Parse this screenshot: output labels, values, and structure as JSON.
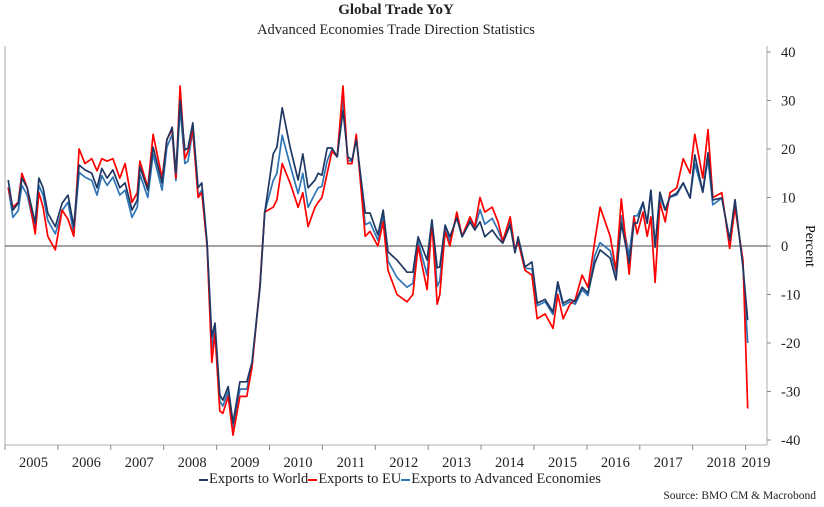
{
  "chart_data": {
    "type": "line",
    "title": "Global Trade YoY",
    "subtitle": "Advanced Economies Trade Direction Statistics",
    "ylabel": "Percent",
    "xlabel": "",
    "ylim": [
      -40,
      40
    ],
    "yticks": [
      40,
      30,
      20,
      10,
      0,
      -10,
      -20,
      -30,
      -40
    ],
    "xlim": [
      2005,
      2019.1
    ],
    "xtick_labels": [
      "2005",
      "2006",
      "2007",
      "2008",
      "2009",
      "2010",
      "2011",
      "2012",
      "2013",
      "2014",
      "2015",
      "2016",
      "2017",
      "2018",
      "2019"
    ],
    "y_axis_side": "right",
    "grid": false,
    "zero_line": true,
    "legend_position": "bottom",
    "source": "Source: BMO CM & Macrobond",
    "x": [
      2005.06,
      2005.15,
      2005.25,
      2005.32,
      2005.42,
      2005.57,
      2005.64,
      2005.72,
      2005.81,
      2005.95,
      2006.08,
      2006.19,
      2006.3,
      2006.4,
      2006.51,
      2006.64,
      2006.74,
      2006.83,
      2006.93,
      2007.04,
      2007.17,
      2007.27,
      2007.4,
      2007.5,
      2007.55,
      2007.7,
      2007.8,
      2007.97,
      2008.06,
      2008.16,
      2008.23,
      2008.31,
      2008.4,
      2008.46,
      2008.55,
      2008.65,
      2008.72,
      2008.82,
      2008.91,
      2008.97,
      2009.06,
      2009.12,
      2009.22,
      2009.31,
      2009.44,
      2009.57,
      2009.67,
      2009.82,
      2009.91,
      2010.07,
      2010.14,
      2010.24,
      2010.39,
      2010.54,
      2010.63,
      2010.73,
      2010.86,
      2010.92,
      2010.99,
      2011.09,
      2011.18,
      2011.28,
      2011.39,
      2011.48,
      2011.56,
      2011.64,
      2011.81,
      2011.9,
      2012.05,
      2012.15,
      2012.24,
      2012.41,
      2012.6,
      2012.71,
      2012.81,
      2012.98,
      2013.07,
      2013.17,
      2013.22,
      2013.32,
      2013.41,
      2013.54,
      2013.64,
      2013.79,
      2013.88,
      2013.98,
      2014.07,
      2014.21,
      2014.32,
      2014.41,
      2014.55,
      2014.64,
      2014.7,
      2014.83,
      2014.96,
      2015.06,
      2015.21,
      2015.36,
      2015.45,
      2015.55,
      2015.68,
      2015.78,
      2015.91,
      2016.02,
      2016.15,
      2016.25,
      2016.44,
      2016.55,
      2016.65,
      2016.8,
      2016.89,
      2016.95,
      2017.06,
      2017.14,
      2017.21,
      2017.29,
      2017.38,
      2017.48,
      2017.57,
      2017.7,
      2017.82,
      2017.95,
      2018.04,
      2018.19,
      2018.29,
      2018.38,
      2018.55,
      2018.7,
      2018.8,
      2018.95,
      2019.04
    ],
    "series": [
      {
        "name": "Exports to World",
        "color": "#1f3864",
        "values": [
          13.6,
          7.4,
          8.8,
          14,
          12,
          4.7,
          14,
          12,
          6.8,
          4,
          8.8,
          10.5,
          4,
          16.7,
          15.7,
          15,
          12,
          16,
          14,
          15.7,
          12,
          13,
          7.4,
          9.5,
          16.3,
          11.5,
          20.4,
          13,
          21.9,
          24.5,
          15,
          30,
          19.8,
          20.2,
          25.4,
          12,
          13,
          0.6,
          -18.8,
          -15.9,
          -30.7,
          -31.8,
          -29,
          -36.5,
          -28,
          -28,
          -24,
          -8.5,
          6.8,
          19,
          20.4,
          28.5,
          20.4,
          13.6,
          19,
          12,
          13.6,
          15,
          14.6,
          20.2,
          20.2,
          18.4,
          28,
          18.4,
          17.7,
          21.9,
          6.8,
          6.8,
          2.3,
          7.4,
          -1.2,
          -2.9,
          -5.4,
          -5.4,
          1.9,
          -2.9,
          5.4,
          -4.5,
          -4.3,
          4.3,
          1.9,
          5.8,
          1.9,
          5,
          3.3,
          5,
          1.9,
          3.3,
          1.6,
          0.6,
          4.3,
          -1.4,
          1.9,
          -4.3,
          -3.3,
          -11.8,
          -11,
          -13.6,
          -7.4,
          -11.8,
          -11,
          -11.5,
          -8.5,
          -9.7,
          -3.5,
          -0.8,
          -2.5,
          -7,
          4.7,
          -3.5,
          4.7,
          4.7,
          9,
          4.7,
          11.5,
          -0.2,
          11.1,
          7.4,
          10.1,
          10.9,
          13,
          9.9,
          18.8,
          11.1,
          19.2,
          9.5,
          9.9,
          1.2,
          9.5,
          -4.3,
          -15.3
        ]
      },
      {
        "name": "Exports to EU",
        "color": "#ff0000",
        "values": [
          12,
          8,
          9,
          15,
          12,
          2.5,
          11,
          8,
          2,
          -0.8,
          7.4,
          5.5,
          2,
          20,
          17,
          18,
          15.5,
          18,
          17.5,
          18,
          14,
          17,
          9,
          11,
          17.5,
          12,
          23,
          14,
          22,
          24,
          14,
          33,
          18,
          19.5,
          24,
          10,
          11,
          0,
          -24,
          -18,
          -34,
          -34.5,
          -31,
          -39,
          -31,
          -31,
          -25,
          -8,
          7,
          8,
          9.5,
          17,
          13,
          8,
          11,
          4,
          8,
          9,
          10,
          15,
          19.5,
          18.4,
          33,
          17,
          17,
          23,
          2,
          3,
          0,
          5,
          -5,
          -10,
          -11.5,
          -10,
          0,
          -9,
          5,
          -12,
          -10,
          3,
          0,
          7,
          2,
          6,
          4,
          10,
          7,
          8,
          5,
          1,
          6,
          -1,
          1,
          -5,
          -6,
          -15,
          -14,
          -17,
          -10,
          -15,
          -12,
          -11,
          -6,
          -8.5,
          1,
          8,
          2,
          -5,
          9.7,
          -5.8,
          6,
          2.5,
          7,
          2,
          6,
          -7.5,
          9,
          5,
          11,
          12,
          18,
          15,
          23,
          14,
          24,
          10,
          11,
          -0.5,
          8,
          -3,
          -33.5
        ]
      },
      {
        "name": "Exports to Advanced Economies",
        "color": "#2e75b6",
        "values": [
          12.1,
          5.9,
          7.3,
          12.5,
          10.5,
          3.2,
          12.5,
          10.5,
          5.3,
          2.5,
          7.3,
          9,
          2.5,
          15.2,
          14.2,
          13.5,
          10.5,
          14.5,
          12.5,
          14.2,
          10.5,
          11.5,
          5.9,
          8,
          14.8,
          10,
          18.9,
          11.5,
          20.4,
          23,
          13.5,
          28.5,
          17,
          17.5,
          23.9,
          10.5,
          11.5,
          0.3,
          -21,
          -17,
          -32,
          -33,
          -30,
          -37.5,
          -29.5,
          -29.5,
          -24.5,
          -8.2,
          6.9,
          13.5,
          15,
          22.8,
          16.7,
          10.8,
          15,
          8,
          10.8,
          12,
          12.3,
          17.6,
          19.9,
          18.4,
          30.5,
          17.7,
          17.4,
          22.5,
          4.4,
          4.9,
          1.2,
          6.2,
          -3.1,
          -6.5,
          -8.5,
          -7.7,
          1,
          -6,
          5.2,
          -8.3,
          -7.2,
          3.7,
          1,
          6.4,
          2,
          5.5,
          3.7,
          7.5,
          4.5,
          5.7,
          3.3,
          0.8,
          5.2,
          -1.2,
          1.5,
          -4.6,
          -4.7,
          -12.3,
          -11.5,
          -14.1,
          -7.9,
          -12.3,
          -11.5,
          -12,
          -9,
          -10.2,
          -2,
          0.7,
          -1,
          -5.5,
          6.2,
          -2,
          6.2,
          6.2,
          9,
          4.7,
          11.5,
          -0.2,
          10,
          7.4,
          10.1,
          10.5,
          13,
          9.9,
          17,
          11.1,
          18,
          8.5,
          9.9,
          1.2,
          9.5,
          -4.3,
          -20
        ]
      }
    ]
  }
}
